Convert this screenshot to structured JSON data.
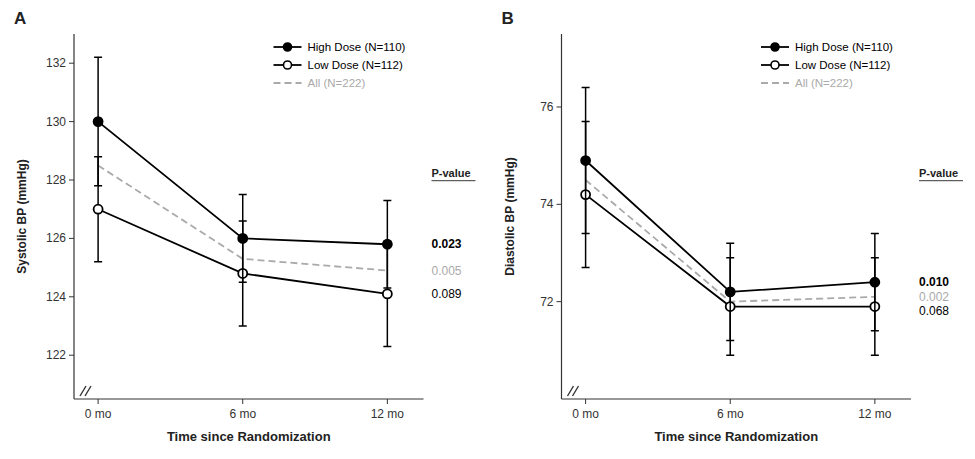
{
  "chart_data": [
    {
      "type": "line",
      "title": "A",
      "x_label": "Time since Randomization",
      "y_label": "Systolic BP (mmHg)",
      "x": [
        0,
        6,
        12
      ],
      "xlim": [
        -1.0,
        13.5
      ],
      "xticks": [
        {
          "value": 0,
          "label": "0 mo"
        },
        {
          "value": 6,
          "label": "6 mo"
        },
        {
          "value": 12,
          "label": "12 mo"
        }
      ],
      "ylim": [
        120.5,
        133.0
      ],
      "yticks": [
        122,
        124,
        126,
        128,
        130,
        132
      ],
      "grid": false,
      "legend": "upper right",
      "annotations": [
        "P-value"
      ],
      "series": [
        {
          "name": "High Dose (N=110)",
          "color": "#000000",
          "marker": "circle",
          "line_style": "solid",
          "values": [
            130.0,
            126.0,
            125.8
          ],
          "errors": [
            2.2,
            1.5,
            1.5
          ],
          "p_value": "0.023"
        },
        {
          "name": "Low Dose (N=112)",
          "color": "#000000",
          "marker": "open-circle",
          "line_style": "solid",
          "values": [
            127.0,
            124.8,
            124.1
          ],
          "errors": [
            1.8,
            1.8,
            1.8
          ],
          "p_value": "0.089"
        },
        {
          "name": "All (N=222)",
          "color": "#aaaaaa",
          "marker": "none",
          "line_style": "dashed",
          "values": [
            128.5,
            125.3,
            124.9
          ],
          "p_value": "0.005"
        }
      ]
    },
    {
      "type": "line",
      "title": "B",
      "x_label": "Time since Randomization",
      "y_label": "Diastolic BP (mmHg)",
      "x": [
        0,
        6,
        12
      ],
      "xlim": [
        -1.0,
        13.5
      ],
      "xticks": [
        {
          "value": 0,
          "label": "0 mo"
        },
        {
          "value": 6,
          "label": "6 mo"
        },
        {
          "value": 12,
          "label": "12 mo"
        }
      ],
      "ylim": [
        70.0,
        77.5
      ],
      "yticks": [
        72,
        74,
        76
      ],
      "grid": false,
      "legend": "upper right",
      "annotations": [
        "P-value"
      ],
      "series": [
        {
          "name": "High Dose (N=110)",
          "color": "#000000",
          "marker": "circle",
          "line_style": "solid",
          "values": [
            74.9,
            72.2,
            72.4
          ],
          "errors": [
            1.5,
            1.0,
            1.0
          ],
          "p_value": "0.010"
        },
        {
          "name": "Low Dose (N=112)",
          "color": "#000000",
          "marker": "open-circle",
          "line_style": "solid",
          "values": [
            74.2,
            71.9,
            71.9
          ],
          "errors": [
            1.5,
            1.0,
            1.0
          ],
          "p_value": "0.068"
        },
        {
          "name": "All (N=222)",
          "color": "#aaaaaa",
          "marker": "none",
          "line_style": "dashed",
          "values": [
            74.5,
            72.0,
            72.1
          ],
          "p_value": "0.002"
        }
      ]
    }
  ]
}
